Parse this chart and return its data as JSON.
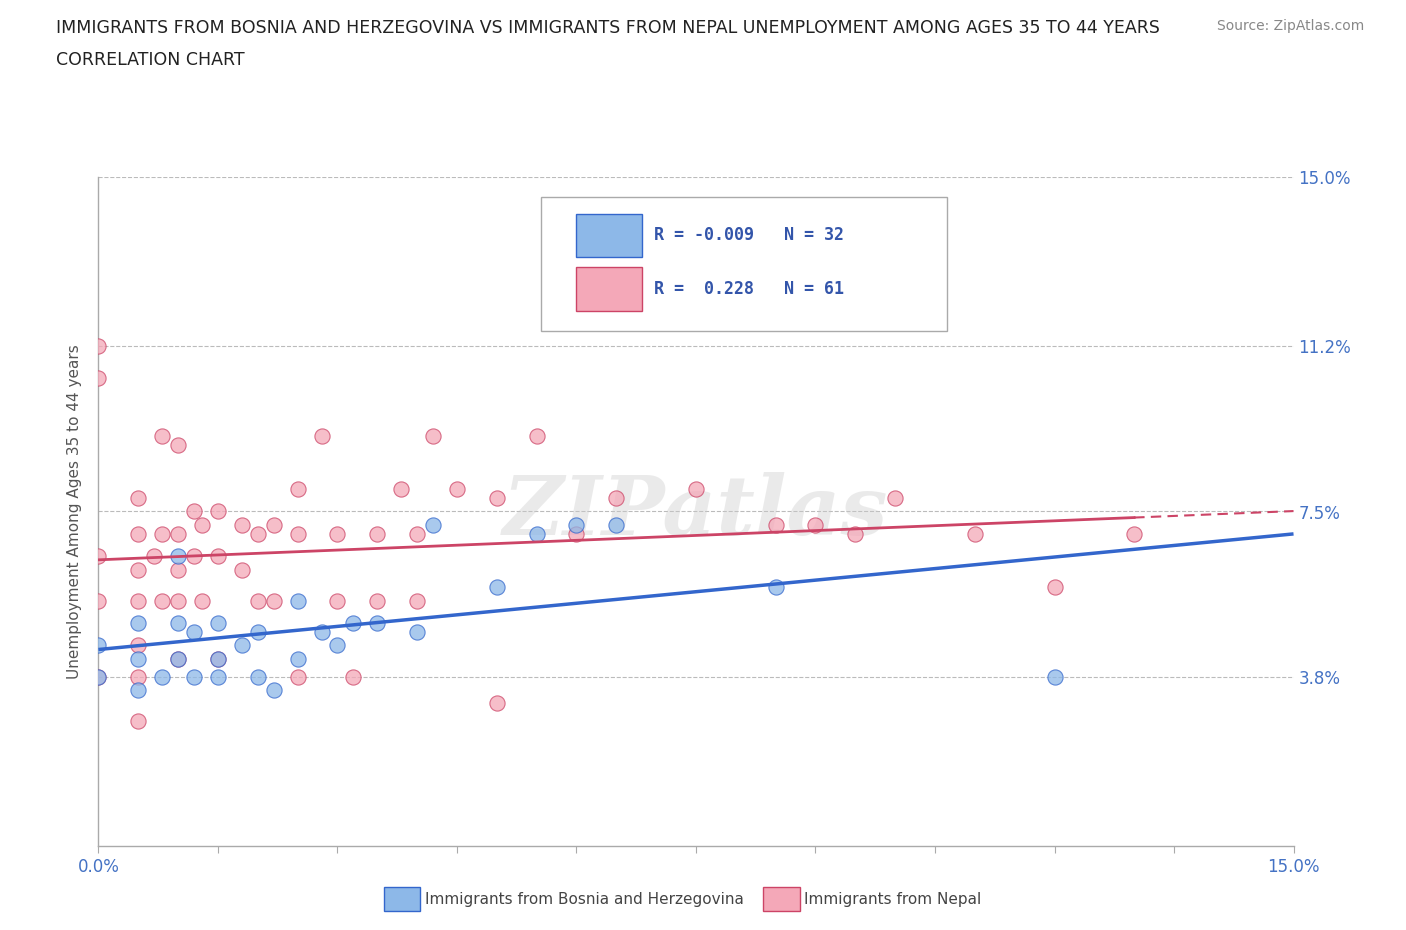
{
  "title_line1": "IMMIGRANTS FROM BOSNIA AND HERZEGOVINA VS IMMIGRANTS FROM NEPAL UNEMPLOYMENT AMONG AGES 35 TO 44 YEARS",
  "title_line2": "CORRELATION CHART",
  "source_text": "Source: ZipAtlas.com",
  "ylabel": "Unemployment Among Ages 35 to 44 years",
  "xlim": [
    0.0,
    0.15
  ],
  "ylim": [
    0.0,
    0.15
  ],
  "ytick_vals": [
    0.0,
    0.038,
    0.075,
    0.112,
    0.15
  ],
  "ytick_labels": [
    "",
    "3.8%",
    "7.5%",
    "11.2%",
    "15.0%"
  ],
  "xtick_vals": [
    0.0,
    0.015,
    0.03,
    0.045,
    0.06,
    0.075,
    0.09,
    0.105,
    0.12,
    0.135,
    0.15
  ],
  "hline_values": [
    0.038,
    0.075,
    0.112,
    0.15
  ],
  "color_bosnia": "#8db8e8",
  "color_nepal": "#f4a8b8",
  "trendline_color_bosnia": "#3366cc",
  "trendline_color_nepal": "#cc4466",
  "legend_R_bosnia": "-0.009",
  "legend_N_bosnia": "32",
  "legend_R_nepal": "0.228",
  "legend_N_nepal": "61",
  "legend_label_bosnia": "Immigrants from Bosnia and Herzegovina",
  "legend_label_nepal": "Immigrants from Nepal",
  "watermark": "ZIPatlas",
  "bosnia_x": [
    0.0,
    0.0,
    0.005,
    0.005,
    0.005,
    0.008,
    0.01,
    0.01,
    0.01,
    0.012,
    0.012,
    0.015,
    0.015,
    0.015,
    0.018,
    0.02,
    0.02,
    0.022,
    0.025,
    0.025,
    0.028,
    0.03,
    0.032,
    0.035,
    0.04,
    0.042,
    0.05,
    0.055,
    0.06,
    0.065,
    0.085,
    0.12
  ],
  "bosnia_y": [
    0.045,
    0.038,
    0.05,
    0.042,
    0.035,
    0.038,
    0.065,
    0.05,
    0.042,
    0.048,
    0.038,
    0.05,
    0.042,
    0.038,
    0.045,
    0.048,
    0.038,
    0.035,
    0.055,
    0.042,
    0.048,
    0.045,
    0.05,
    0.05,
    0.048,
    0.072,
    0.058,
    0.07,
    0.072,
    0.072,
    0.058,
    0.038
  ],
  "nepal_x": [
    0.0,
    0.0,
    0.0,
    0.0,
    0.0,
    0.005,
    0.005,
    0.005,
    0.005,
    0.005,
    0.005,
    0.005,
    0.007,
    0.008,
    0.008,
    0.008,
    0.01,
    0.01,
    0.01,
    0.01,
    0.01,
    0.012,
    0.012,
    0.013,
    0.013,
    0.015,
    0.015,
    0.015,
    0.018,
    0.018,
    0.02,
    0.02,
    0.022,
    0.022,
    0.025,
    0.025,
    0.025,
    0.028,
    0.03,
    0.03,
    0.032,
    0.035,
    0.035,
    0.038,
    0.04,
    0.04,
    0.042,
    0.045,
    0.05,
    0.05,
    0.055,
    0.06,
    0.065,
    0.075,
    0.085,
    0.09,
    0.095,
    0.1,
    0.11,
    0.12,
    0.13
  ],
  "nepal_y": [
    0.112,
    0.105,
    0.065,
    0.055,
    0.038,
    0.078,
    0.07,
    0.062,
    0.055,
    0.045,
    0.038,
    0.028,
    0.065,
    0.092,
    0.07,
    0.055,
    0.09,
    0.07,
    0.062,
    0.055,
    0.042,
    0.075,
    0.065,
    0.072,
    0.055,
    0.075,
    0.065,
    0.042,
    0.072,
    0.062,
    0.07,
    0.055,
    0.072,
    0.055,
    0.08,
    0.07,
    0.038,
    0.092,
    0.07,
    0.055,
    0.038,
    0.07,
    0.055,
    0.08,
    0.07,
    0.055,
    0.092,
    0.08,
    0.078,
    0.032,
    0.092,
    0.07,
    0.078,
    0.08,
    0.072,
    0.072,
    0.07,
    0.078,
    0.07,
    0.058,
    0.07
  ]
}
